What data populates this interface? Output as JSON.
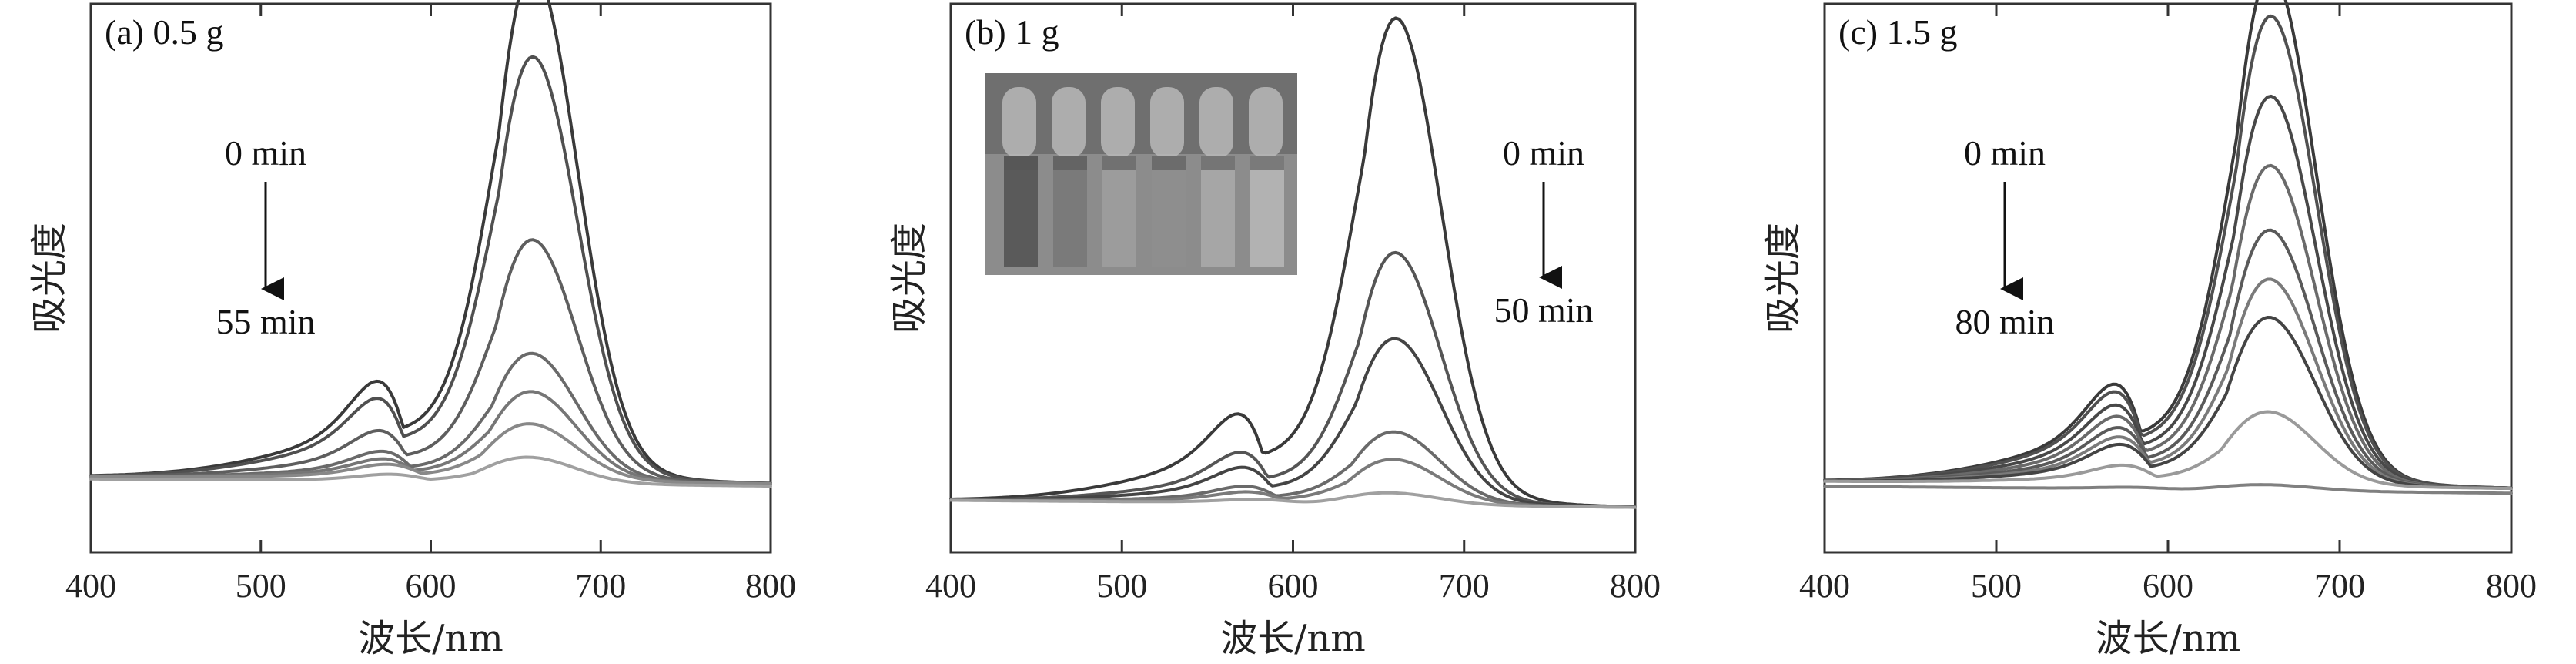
{
  "chart_data": [
    {
      "type": "line",
      "title": "(a) 0.5 g",
      "xlabel": "波长/nm",
      "ylabel": "吸光度",
      "xlim": [
        400,
        800
      ],
      "ylim": [
        0,
        1.0
      ],
      "xticks": [
        "400",
        "500",
        "600",
        "700",
        "800"
      ],
      "grid": false,
      "annotation": {
        "start": "0 min",
        "end": "55 min"
      },
      "series": [
        {
          "color": "#3a3a3a",
          "peak": 0.94,
          "shoulder": 0.52,
          "base": 0.08
        },
        {
          "color": "#505050",
          "peak": 0.78,
          "shoulder": 0.43,
          "base": 0.08
        },
        {
          "color": "#5e5e5e",
          "peak": 0.44,
          "shoulder": 0.26,
          "base": 0.08
        },
        {
          "color": "#6a6a6a",
          "peak": 0.23,
          "shoulder": 0.15,
          "base": 0.08
        },
        {
          "color": "#767676",
          "peak": 0.16,
          "shoulder": 0.11,
          "base": 0.08
        },
        {
          "color": "#888888",
          "peak": 0.1,
          "shoulder": 0.08,
          "base": 0.08
        },
        {
          "color": "#a0a0a0",
          "peak": 0.045,
          "shoulder": 0.04,
          "base": 0.075
        }
      ]
    },
    {
      "type": "line",
      "title": "(b) 1 g",
      "xlabel": "波长/nm",
      "ylabel": "吸光度",
      "xlim": [
        400,
        800
      ],
      "ylim": [
        0,
        1.0
      ],
      "xticks": [
        "400",
        "500",
        "600",
        "700",
        "800"
      ],
      "grid": false,
      "annotation": {
        "start": "0 min",
        "end": "50 min"
      },
      "inset": "cuvette photo",
      "series": [
        {
          "color": "#3a3a3a",
          "peak": 0.9,
          "shoulder": 0.47,
          "base": 0.03
        },
        {
          "color": "#555555",
          "peak": 0.46,
          "shoulder": 0.27,
          "base": 0.03
        },
        {
          "color": "#444444",
          "peak": 0.3,
          "shoulder": 0.19,
          "base": 0.03
        },
        {
          "color": "#6a6a6a",
          "peak": 0.13,
          "shoulder": 0.09,
          "base": 0.03
        },
        {
          "color": "#7a7a7a",
          "peak": 0.08,
          "shoulder": 0.06,
          "base": 0.03
        },
        {
          "color": "#a0a0a0",
          "peak": 0.02,
          "shoulder": 0.02,
          "base": 0.03
        }
      ]
    },
    {
      "type": "line",
      "title": "(c) 1.5 g",
      "xlabel": "波长/nm",
      "ylabel": "吸光度",
      "xlim": [
        400,
        800
      ],
      "ylim": [
        0,
        1.0
      ],
      "xticks": [
        "400",
        "500",
        "600",
        "700",
        "800"
      ],
      "grid": false,
      "annotation": {
        "start": "0 min",
        "end": "80 min"
      },
      "series": [
        {
          "color": "#3a3a3a",
          "peak": 0.94,
          "shoulder": 0.53,
          "base": 0.07
        },
        {
          "color": "#505050",
          "peak": 0.86,
          "shoulder": 0.49,
          "base": 0.07
        },
        {
          "color": "#484848",
          "peak": 0.71,
          "shoulder": 0.42,
          "base": 0.07
        },
        {
          "color": "#6a6a6a",
          "peak": 0.58,
          "shoulder": 0.36,
          "base": 0.07
        },
        {
          "color": "#5a5a5a",
          "peak": 0.46,
          "shoulder": 0.3,
          "base": 0.07
        },
        {
          "color": "#7a7a7a",
          "peak": 0.37,
          "shoulder": 0.25,
          "base": 0.07
        },
        {
          "color": "#444444",
          "peak": 0.3,
          "shoulder": 0.21,
          "base": 0.07
        },
        {
          "color": "#9a9a9a",
          "peak": 0.13,
          "shoulder": 0.1,
          "base": 0.07
        },
        {
          "color": "#808080",
          "peak": 0.01,
          "shoulder": 0.01,
          "base": 0.06
        }
      ]
    }
  ]
}
